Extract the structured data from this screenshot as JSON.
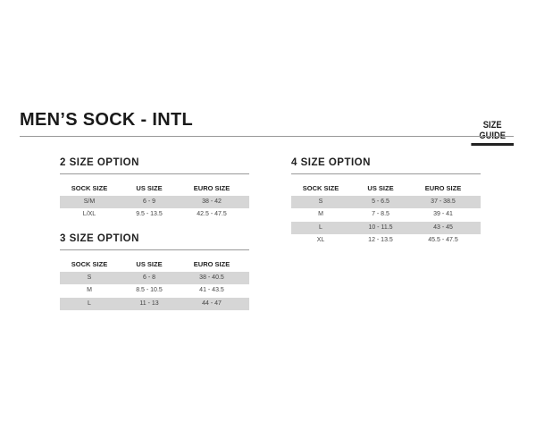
{
  "title": "MEN’S SOCK - INTL",
  "size_guide_label": "SIZE GUIDE",
  "columns": [
    "SOCK SIZE",
    "US SIZE",
    "EURO SIZE"
  ],
  "tables": [
    {
      "heading": "2 SIZE OPTION",
      "rows": [
        [
          "S/M",
          "6 - 9",
          "38 - 42"
        ],
        [
          "L/XL",
          "9.5 - 13.5",
          "42.5 - 47.5"
        ]
      ]
    },
    {
      "heading": "3 SIZE OPTION",
      "rows": [
        [
          "S",
          "6 - 8",
          "38 - 40.5"
        ],
        [
          "M",
          "8.5 - 10.5",
          "41 - 43.5"
        ],
        [
          "L",
          "11 - 13",
          "44 - 47"
        ]
      ]
    },
    {
      "heading": "4 SIZE OPTION",
      "rows": [
        [
          "S",
          "5 - 6.5",
          "37 - 38.5"
        ],
        [
          "M",
          "7 - 8.5",
          "39 - 41"
        ],
        [
          "L",
          "10 - 11.5",
          "43 - 45"
        ],
        [
          "XL",
          "12 - 13.5",
          "45.5 - 47.5"
        ]
      ]
    }
  ]
}
